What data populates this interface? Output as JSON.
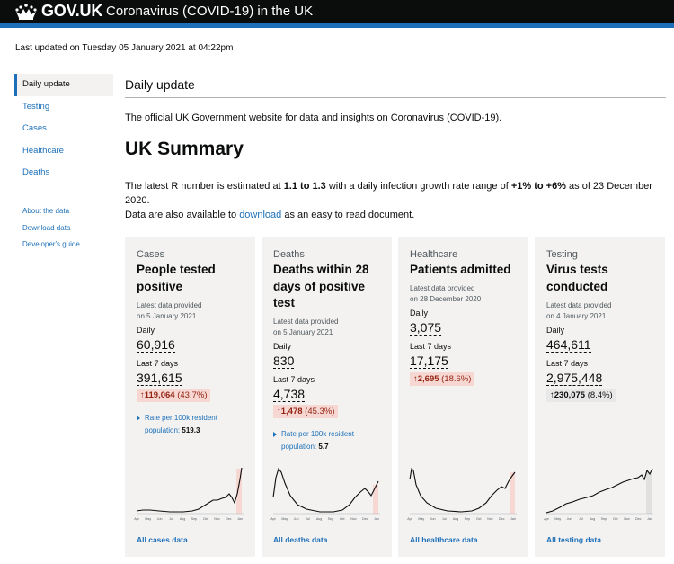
{
  "header": {
    "logo_text": "GOV.UK",
    "service_name": "Coronavirus (COVID-19) in the UK"
  },
  "last_updated": "Last updated on Tuesday 05 January 2021 at 04:22pm",
  "nav": {
    "items": [
      {
        "label": "Daily update",
        "active": true
      },
      {
        "label": "Testing"
      },
      {
        "label": "Cases"
      },
      {
        "label": "Healthcare"
      },
      {
        "label": "Deaths"
      }
    ],
    "secondary": [
      "About the data",
      "Download data",
      "Developer's guide"
    ]
  },
  "main": {
    "page_title": "Daily update",
    "intro": "The official UK Government website for data and insights on Coronavirus (COVID-19).",
    "summary_title": "UK Summary",
    "r_prefix": "The latest R number is estimated at ",
    "r_range": "1.1 to 1.3",
    "r_middle": " with a daily infection growth rate range of ",
    "growth_range": "+1% to +6%",
    "r_suffix": " as of 23 December 2020.",
    "avail_prefix": "Data are also available to ",
    "avail_link": "download",
    "avail_suffix": " as an easy to read document."
  },
  "cards": [
    {
      "category": "Cases",
      "title": "People tested positive",
      "meta1": "Latest data provided",
      "meta2": "on 5 January 2021",
      "daily_label": "Daily",
      "daily_value": "60,916",
      "week_label": "Last 7 days",
      "week_value": "391,615",
      "change_arrow": "↑",
      "change_num": "119,064",
      "change_pct": "(43.7%)",
      "rate_label": "Rate per 100k resident population:",
      "rate_value": "519.3",
      "link": "All cases data"
    },
    {
      "category": "Deaths",
      "title": "Deaths within 28 days of positive test",
      "meta1": "Latest data provided",
      "meta2": "on 5 January 2021",
      "daily_label": "Daily",
      "daily_value": "830",
      "week_label": "Last 7 days",
      "week_value": "4,738",
      "change_arrow": "↑",
      "change_num": "1,478",
      "change_pct": "(45.3%)",
      "rate_label": "Rate per 100k resident population:",
      "rate_value": "5.7",
      "link": "All deaths data"
    },
    {
      "category": "Healthcare",
      "title": "Patients admitted",
      "meta1": "Latest data provided",
      "meta2": "on 28 December 2020",
      "daily_label": "Daily",
      "daily_value": "3,075",
      "week_label": "Last 7 days",
      "week_value": "17,175",
      "change_arrow": "↑",
      "change_num": "2,695",
      "change_pct": "(18.6%)",
      "link": "All healthcare data"
    },
    {
      "category": "Testing",
      "title": "Virus tests conducted",
      "meta1": "Latest data provided",
      "meta2": "on 4 January 2021",
      "daily_label": "Daily",
      "daily_value": "464,611",
      "week_label": "Last 7 days",
      "week_value": "2,975,448",
      "change_arrow": "↑",
      "change_num": "230,075",
      "change_pct": "(8.4%)",
      "link": "All testing data"
    }
  ],
  "chart_months": [
    "Apr",
    "May",
    "Jun",
    "Jul",
    "Aug",
    "Sep",
    "Oct",
    "Nov",
    "Dec",
    "Jan"
  ],
  "colors": {
    "link": "#1d70b8",
    "header": "#0b0c0c",
    "card_bg": "#f3f2f1",
    "increase_bg": "#f6d7d2",
    "increase_text": "#942514"
  }
}
